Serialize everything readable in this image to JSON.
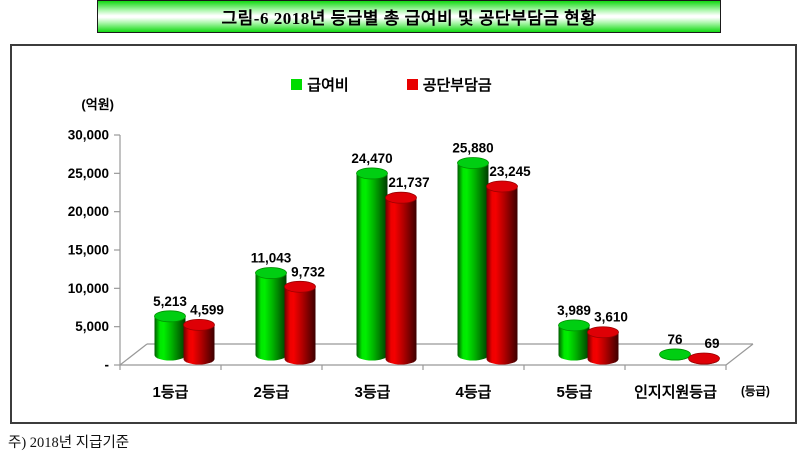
{
  "title": "그림-6 2018년 등급별 총 급여비 및 공단부담금 현황",
  "footnote": "주) 2018년 지급기준",
  "colors": {
    "title_bar_green": "#12D912",
    "axis_gray": "#999999",
    "series_green": "#00DC00",
    "series_red": "#E80000"
  },
  "chart_data": {
    "type": "bar",
    "style": "3d-cylinder",
    "y_axis_unit": "(억원)",
    "x_axis_unit": "(등급)",
    "categories": [
      "1등급",
      "2등급",
      "3등급",
      "4등급",
      "5등급",
      "인지지원등급"
    ],
    "series": [
      {
        "name": "급여비",
        "color": "#00DC00",
        "top_color": "#00CE12",
        "top_edge": "#008F00",
        "body_gradient": [
          "#005A00",
          "#00E800",
          "#00EE00",
          "#00B400",
          "#003C00"
        ],
        "body_stops": [
          "0%",
          "18%",
          "30%",
          "55%",
          "100%"
        ],
        "values": [
          5213,
          11043,
          24470,
          25880,
          3989,
          76
        ]
      },
      {
        "name": "공단부담금",
        "color": "#E80000",
        "top_color": "#DE0006",
        "top_edge": "#9A0000",
        "body_gradient": [
          "#6E0000",
          "#EE0000",
          "#F40000",
          "#B80000",
          "#3C0000"
        ],
        "body_stops": [
          "0%",
          "18%",
          "30%",
          "55%",
          "100%"
        ],
        "values": [
          4599,
          9732,
          21737,
          23245,
          3610,
          69
        ]
      }
    ],
    "y_ticks": [
      "30,000",
      "25,000",
      "20,000",
      "15,000",
      "10,000",
      "5,000",
      "-"
    ],
    "ylim": [
      0,
      30000
    ],
    "y_tick_step": 5000,
    "legend_position": "top-center",
    "grid": false,
    "value_labels": true
  }
}
